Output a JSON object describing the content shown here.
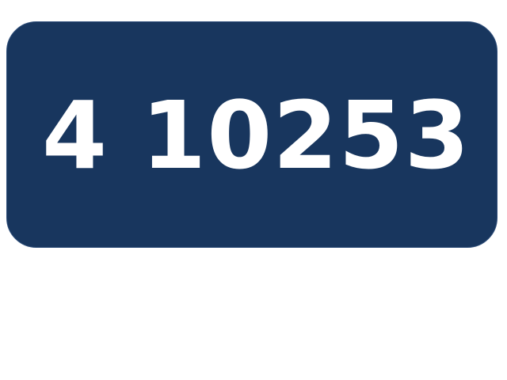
{
  "card": {
    "prefix": "4",
    "number": "10253"
  },
  "colors": {
    "card_background": "#18365e",
    "text": "#ffffff",
    "page_background": "#ffffff"
  }
}
